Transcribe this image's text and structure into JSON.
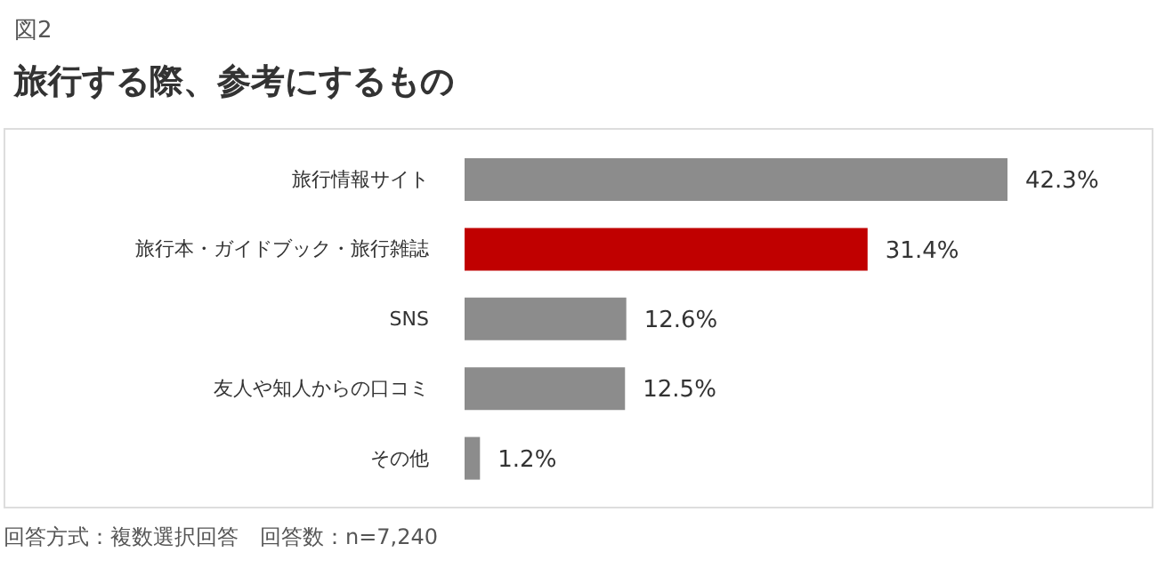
{
  "chart_data": {
    "type": "bar",
    "orientation": "horizontal",
    "subtitle": "図2",
    "title": "旅行する際、参考にするもの",
    "categories": [
      "旅行情報サイト",
      "旅行本・ガイドブック・旅行雑誌",
      "SNS",
      "友人や知人からの口コミ",
      "その他"
    ],
    "values": [
      42.3,
      31.4,
      12.6,
      12.5,
      1.2
    ],
    "colors": [
      "#8c8c8c",
      "#c00000",
      "#8c8c8c",
      "#8c8c8c",
      "#8c8c8c"
    ],
    "value_labels": [
      "42.3%",
      "31.4%",
      "12.6%",
      "12.5%",
      "1.2%"
    ],
    "annotations": [
      "回答方式：複数選択回答　回答数：n=7,240"
    ]
  }
}
